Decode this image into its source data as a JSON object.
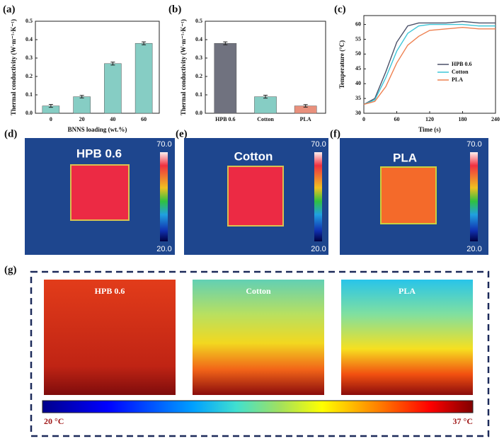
{
  "chart_data": [
    {
      "type": "bar",
      "panel": "(a)",
      "xlabel": "BNNS loading (wt.%)",
      "ylabel": "Thermal conductivity (W·m⁻¹·K⁻¹)",
      "categories": [
        "0",
        "20",
        "40",
        "60"
      ],
      "values": [
        0.04,
        0.09,
        0.27,
        0.38
      ],
      "errors": [
        0.008,
        0.007,
        0.008,
        0.008
      ],
      "color": "#86cdc4",
      "ylim": [
        0,
        0.5
      ],
      "yticks": [
        {
          "value": 0,
          "label": "0.0"
        },
        0.1,
        0.2,
        0.3,
        0.4,
        0.5
      ]
    },
    {
      "type": "bar",
      "panel": "(b)",
      "ylabel": "Thermal conductivity (W·m⁻¹·K⁻¹)",
      "categories": [
        "HPB 0.6",
        "Cotton",
        "PLA"
      ],
      "values": [
        0.38,
        0.09,
        0.04
      ],
      "errors": [
        0.008,
        0.008,
        0.007
      ],
      "colors": [
        "#70727f",
        "#86cdc4",
        "#e9907c"
      ],
      "ylim": [
        0,
        0.5
      ],
      "yticks": [
        {
          "value": 0,
          "label": "0.0"
        },
        0.1,
        0.2,
        0.3,
        0.4,
        0.5
      ]
    },
    {
      "type": "line",
      "panel": "(c)",
      "xlabel": "Time (s)",
      "ylabel": "Temperature (°C)",
      "x": [
        0,
        20,
        40,
        60,
        80,
        100,
        120,
        150,
        180,
        210,
        240
      ],
      "series": [
        {
          "name": "HPB 0.6",
          "color": "#4a5068",
          "values": [
            33,
            35,
            44,
            54,
            59.5,
            60.5,
            60.5,
            60.5,
            61,
            60.5,
            60.5
          ]
        },
        {
          "name": "Cotton",
          "color": "#3ec6d8",
          "values": [
            33,
            34.5,
            42,
            51,
            57,
            59.5,
            60,
            60,
            60,
            59.5,
            59.5
          ]
        },
        {
          "name": "PLA",
          "color": "#ee8050",
          "values": [
            33,
            34,
            39,
            47,
            53,
            56,
            58,
            58.5,
            59,
            58.5,
            58.5
          ]
        }
      ],
      "xlim": [
        0,
        240
      ],
      "xticks": [
        0,
        60,
        120,
        180,
        240
      ],
      "ylim": [
        30,
        63
      ],
      "yticks": [
        30,
        35,
        40,
        45,
        50,
        55,
        60
      ],
      "legend": "right"
    }
  ],
  "thermal_images": [
    {
      "panel": "(d)",
      "label": "HPB 0.6",
      "scale_max": "70.0",
      "scale_min": "20.0"
    },
    {
      "panel": "(e)",
      "label": "Cotton",
      "scale_max": "70.0",
      "scale_min": "20.0"
    },
    {
      "panel": "(f)",
      "label": "PLA",
      "scale_max": "70.0",
      "scale_min": "20.0"
    }
  ],
  "simulation": {
    "panel": "(g)",
    "labels": [
      "HPB 0.6",
      "Cotton",
      "PLA"
    ],
    "scale_min": "20 °C",
    "scale_max": "37 °C"
  }
}
